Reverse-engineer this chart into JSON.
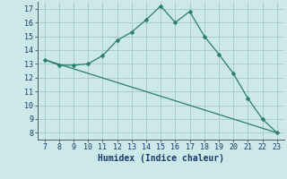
{
  "line1_x": [
    7,
    8,
    9,
    10,
    11,
    12,
    13,
    14,
    15,
    16,
    17,
    18,
    19,
    20,
    21,
    22,
    23
  ],
  "line1_y": [
    13.3,
    12.9,
    12.9,
    13.0,
    13.6,
    14.7,
    15.3,
    16.2,
    17.2,
    16.0,
    16.8,
    15.0,
    13.7,
    12.3,
    10.5,
    9.0,
    8.0
  ],
  "line2_x": [
    7,
    23
  ],
  "line2_y": [
    13.3,
    8.0
  ],
  "line_color": "#2a7d6e",
  "bg_color": "#cce8e8",
  "grid_color": "#aacccc",
  "xlabel": "Humidex (Indice chaleur)",
  "xlim": [
    6.5,
    23.5
  ],
  "ylim": [
    7.5,
    17.5
  ],
  "xticks": [
    7,
    8,
    9,
    10,
    11,
    12,
    13,
    14,
    15,
    16,
    17,
    18,
    19,
    20,
    21,
    22,
    23
  ],
  "yticks": [
    8,
    9,
    10,
    11,
    12,
    13,
    14,
    15,
    16,
    17
  ],
  "markersize": 2.5,
  "linewidth": 0.9,
  "tick_fontsize": 6,
  "xlabel_fontsize": 7
}
